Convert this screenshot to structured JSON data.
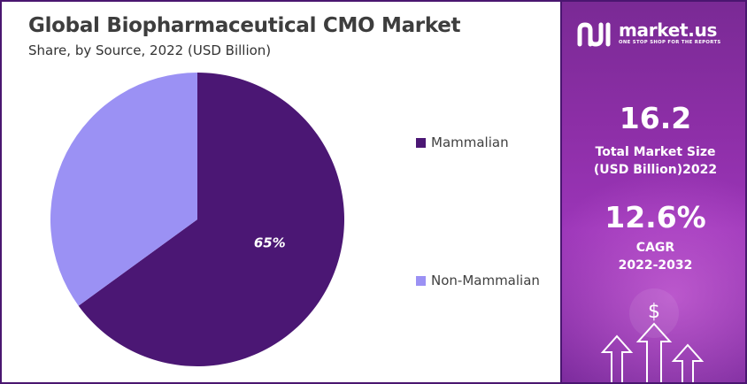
{
  "chart_data": {
    "type": "pie",
    "title": "Global Biopharmaceutical CMO Market",
    "subtitle": "Share, by Source, 2022 (USD Billion)",
    "categories": [
      "Mammalian",
      "Non-Mammalian"
    ],
    "values": [
      65,
      35
    ],
    "data_labels": [
      "65%",
      ""
    ],
    "colors": [
      "#4b1774",
      "#9b91f4"
    ],
    "legend_placement": "right",
    "start_angle_deg": 0,
    "direction": "clockwise"
  },
  "brand": {
    "name": "market.us",
    "tagline": "ONE STOP SHOP FOR THE REPORTS"
  },
  "stats": {
    "market_size_value": "16.2",
    "market_size_label_1": "Total Market Size",
    "market_size_label_2": "(USD Billion)2022",
    "cagr_value": "12.6%",
    "cagr_label_1": "CAGR",
    "cagr_label_2": "2022-2032"
  },
  "decor": {
    "currency_symbol": "$"
  }
}
